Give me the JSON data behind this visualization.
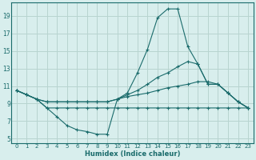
{
  "xlabel": "Humidex (Indice chaleur)",
  "bg_color": "#d8eeed",
  "grid_color": "#b8d4d0",
  "line_color": "#1a6b6b",
  "x_ticks": [
    0,
    1,
    2,
    3,
    4,
    5,
    6,
    7,
    8,
    9,
    10,
    11,
    12,
    13,
    14,
    15,
    16,
    17,
    18,
    19,
    20,
    21,
    22,
    23
  ],
  "y_ticks": [
    5,
    7,
    9,
    11,
    13,
    15,
    17,
    19
  ],
  "xlim": [
    -0.5,
    23.5
  ],
  "ylim": [
    4.5,
    20.5
  ],
  "series": [
    {
      "x": [
        0,
        1,
        2,
        3,
        4,
        5,
        6,
        7,
        8,
        9,
        10,
        11,
        12,
        13,
        14,
        15,
        16,
        17,
        18,
        19,
        20,
        21,
        22,
        23
      ],
      "y": [
        10.5,
        10.0,
        9.5,
        8.5,
        7.5,
        6.5,
        6.0,
        5.8,
        5.5,
        5.5,
        9.5,
        10.2,
        12.5,
        15.2,
        18.8,
        19.8,
        19.8,
        15.5,
        13.5,
        11.2,
        11.2,
        10.2,
        9.2,
        8.5
      ]
    },
    {
      "x": [
        0,
        1,
        2,
        3,
        4,
        5,
        6,
        7,
        8,
        9,
        10,
        11,
        12,
        13,
        14,
        15,
        16,
        17,
        18,
        19,
        20,
        21,
        22,
        23
      ],
      "y": [
        10.5,
        10.0,
        9.5,
        9.2,
        9.2,
        9.2,
        9.2,
        9.2,
        9.2,
        9.2,
        9.5,
        10.0,
        10.5,
        11.2,
        12.0,
        12.5,
        13.2,
        13.8,
        13.5,
        11.2,
        11.2,
        10.2,
        9.2,
        8.5
      ]
    },
    {
      "x": [
        0,
        1,
        2,
        3,
        4,
        5,
        6,
        7,
        8,
        9,
        10,
        11,
        12,
        13,
        14,
        15,
        16,
        17,
        18,
        19,
        20,
        21,
        22,
        23
      ],
      "y": [
        10.5,
        10.0,
        9.5,
        9.2,
        9.2,
        9.2,
        9.2,
        9.2,
        9.2,
        9.2,
        9.5,
        9.8,
        10.0,
        10.2,
        10.5,
        10.8,
        11.0,
        11.2,
        11.5,
        11.5,
        11.2,
        10.2,
        9.2,
        8.5
      ]
    },
    {
      "x": [
        0,
        1,
        2,
        3,
        4,
        5,
        6,
        7,
        8,
        9,
        10,
        11,
        12,
        13,
        14,
        15,
        16,
        17,
        18,
        19,
        20,
        21,
        22,
        23
      ],
      "y": [
        10.5,
        10.0,
        9.5,
        8.5,
        8.5,
        8.5,
        8.5,
        8.5,
        8.5,
        8.5,
        8.5,
        8.5,
        8.5,
        8.5,
        8.5,
        8.5,
        8.5,
        8.5,
        8.5,
        8.5,
        8.5,
        8.5,
        8.5,
        8.5
      ]
    }
  ]
}
